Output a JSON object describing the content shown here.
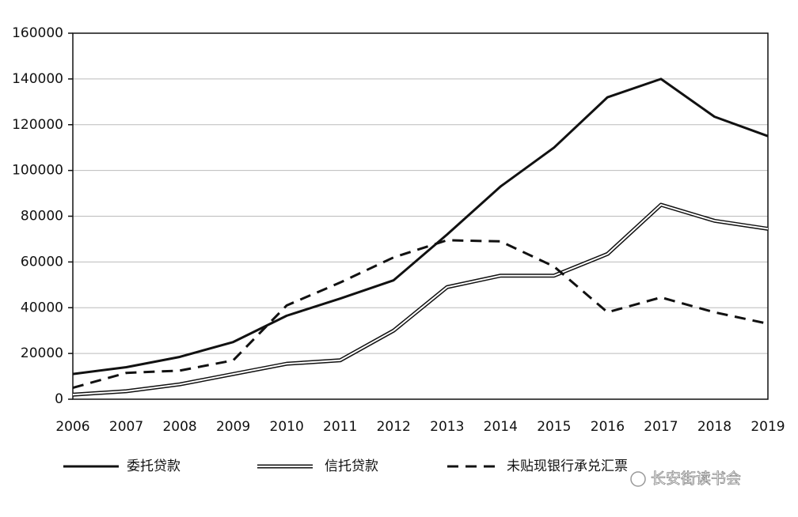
{
  "chart_data": {
    "type": "line",
    "categories": [
      "2006",
      "2007",
      "2008",
      "2009",
      "2010",
      "2011",
      "2012",
      "2013",
      "2014",
      "2015",
      "2016",
      "2017",
      "2018",
      "2019"
    ],
    "series": [
      {
        "name": "委托贷款",
        "color": "#111111",
        "style": "solid",
        "values": [
          11000,
          14000,
          18500,
          25000,
          36500,
          44000,
          52000,
          72000,
          93000,
          110000,
          132000,
          140000,
          123500,
          115000
        ]
      },
      {
        "name": "信托贷款",
        "color": "#111111",
        "style": "double",
        "values": [
          2000,
          3500,
          6500,
          11000,
          15500,
          17000,
          30000,
          49000,
          54000,
          54000,
          63500,
          85000,
          78000,
          74500
        ]
      },
      {
        "name": "未贴现银行承兑汇票",
        "color": "#111111",
        "style": "dashed",
        "values": [
          5000,
          11500,
          12500,
          17000,
          41000,
          51000,
          62000,
          69500,
          69000,
          58000,
          38000,
          44500,
          38000,
          33000
        ]
      }
    ],
    "ylim": [
      0,
      160000
    ],
    "yticks": [
      0,
      20000,
      40000,
      60000,
      80000,
      100000,
      120000,
      140000,
      160000
    ],
    "grid": true,
    "legend": "bottom",
    "watermark": "长安街读书会"
  }
}
